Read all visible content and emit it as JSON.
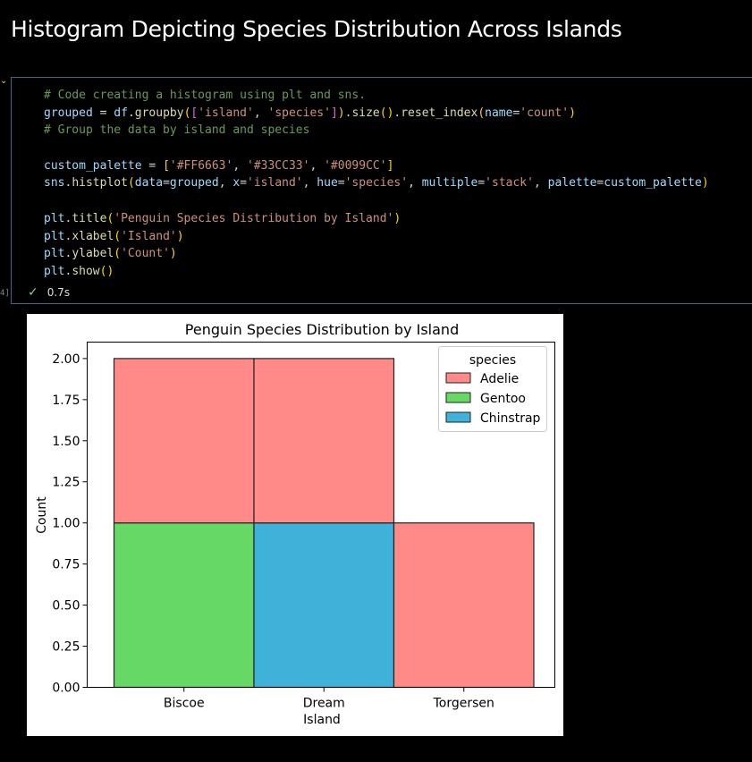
{
  "header": {
    "title": "Histogram Depicting Species Distribution Across Islands"
  },
  "cell": {
    "number": "4]",
    "status_time": "0.7s",
    "code_lines": [
      [
        {
          "t": "# Code creating a histogram using plt and sns.",
          "c": "c-comment"
        }
      ],
      [
        {
          "t": "grouped",
          "c": "c-var"
        },
        {
          "t": " = ",
          "c": "c-op"
        },
        {
          "t": "df",
          "c": "c-var"
        },
        {
          "t": ".",
          "c": "c-op"
        },
        {
          "t": "groupby",
          "c": "c-fn"
        },
        {
          "t": "(",
          "c": "c-br1"
        },
        {
          "t": "[",
          "c": "c-br2"
        },
        {
          "t": "'island'",
          "c": "c-str"
        },
        {
          "t": ", ",
          "c": "c-op"
        },
        {
          "t": "'species'",
          "c": "c-str"
        },
        {
          "t": "]",
          "c": "c-br2"
        },
        {
          "t": ")",
          "c": "c-br1"
        },
        {
          "t": ".",
          "c": "c-op"
        },
        {
          "t": "size",
          "c": "c-fn"
        },
        {
          "t": "()",
          "c": "c-br1"
        },
        {
          "t": ".",
          "c": "c-op"
        },
        {
          "t": "reset_index",
          "c": "c-fn"
        },
        {
          "t": "(",
          "c": "c-br1"
        },
        {
          "t": "name",
          "c": "c-var"
        },
        {
          "t": "=",
          "c": "c-op"
        },
        {
          "t": "'count'",
          "c": "c-str"
        },
        {
          "t": ")",
          "c": "c-br1"
        }
      ],
      [
        {
          "t": "# Group the data by island and species",
          "c": "c-comment"
        }
      ],
      [],
      [
        {
          "t": "custom_palette",
          "c": "c-var"
        },
        {
          "t": " = ",
          "c": "c-op"
        },
        {
          "t": "[",
          "c": "c-br1"
        },
        {
          "t": "'#FF6663'",
          "c": "c-str"
        },
        {
          "t": ", ",
          "c": "c-op"
        },
        {
          "t": "'#33CC33'",
          "c": "c-str"
        },
        {
          "t": ", ",
          "c": "c-op"
        },
        {
          "t": "'#0099CC'",
          "c": "c-str"
        },
        {
          "t": "]",
          "c": "c-br1"
        }
      ],
      [
        {
          "t": "sns",
          "c": "c-var"
        },
        {
          "t": ".",
          "c": "c-op"
        },
        {
          "t": "histplot",
          "c": "c-fn"
        },
        {
          "t": "(",
          "c": "c-br1"
        },
        {
          "t": "data",
          "c": "c-var"
        },
        {
          "t": "=",
          "c": "c-op"
        },
        {
          "t": "grouped",
          "c": "c-var"
        },
        {
          "t": ", ",
          "c": "c-op"
        },
        {
          "t": "x",
          "c": "c-var"
        },
        {
          "t": "=",
          "c": "c-op"
        },
        {
          "t": "'island'",
          "c": "c-str"
        },
        {
          "t": ", ",
          "c": "c-op"
        },
        {
          "t": "hue",
          "c": "c-var"
        },
        {
          "t": "=",
          "c": "c-op"
        },
        {
          "t": "'species'",
          "c": "c-str"
        },
        {
          "t": ", ",
          "c": "c-op"
        },
        {
          "t": "multiple",
          "c": "c-var"
        },
        {
          "t": "=",
          "c": "c-op"
        },
        {
          "t": "'stack'",
          "c": "c-str"
        },
        {
          "t": ", ",
          "c": "c-op"
        },
        {
          "t": "palette",
          "c": "c-var"
        },
        {
          "t": "=",
          "c": "c-op"
        },
        {
          "t": "custom_palette",
          "c": "c-var"
        },
        {
          "t": ")",
          "c": "c-br1"
        }
      ],
      [],
      [
        {
          "t": "plt",
          "c": "c-var"
        },
        {
          "t": ".",
          "c": "c-op"
        },
        {
          "t": "title",
          "c": "c-fn"
        },
        {
          "t": "(",
          "c": "c-br1"
        },
        {
          "t": "'Penguin Species Distribution by Island'",
          "c": "c-str"
        },
        {
          "t": ")",
          "c": "c-br1"
        }
      ],
      [
        {
          "t": "plt",
          "c": "c-var"
        },
        {
          "t": ".",
          "c": "c-op"
        },
        {
          "t": "xlabel",
          "c": "c-fn"
        },
        {
          "t": "(",
          "c": "c-br1"
        },
        {
          "t": "'Island'",
          "c": "c-str"
        },
        {
          "t": ")",
          "c": "c-br1"
        }
      ],
      [
        {
          "t": "plt",
          "c": "c-var"
        },
        {
          "t": ".",
          "c": "c-op"
        },
        {
          "t": "ylabel",
          "c": "c-fn"
        },
        {
          "t": "(",
          "c": "c-br1"
        },
        {
          "t": "'Count'",
          "c": "c-str"
        },
        {
          "t": ")",
          "c": "c-br1"
        }
      ],
      [
        {
          "t": "plt",
          "c": "c-var"
        },
        {
          "t": ".",
          "c": "c-op"
        },
        {
          "t": "show",
          "c": "c-fn"
        },
        {
          "t": "()",
          "c": "c-br1"
        }
      ]
    ]
  },
  "chart_data": {
    "type": "bar",
    "title": "Penguin Species Distribution by Island",
    "xlabel": "Island",
    "ylabel": "Count",
    "categories": [
      "Biscoe",
      "Dream",
      "Torgersen"
    ],
    "ylim": [
      0,
      2.1
    ],
    "yticks": [
      "0.00",
      "0.25",
      "0.50",
      "0.75",
      "1.00",
      "1.25",
      "1.50",
      "1.75",
      "2.00"
    ],
    "stacked": true,
    "legend": {
      "title": "species",
      "placement": "top-right"
    },
    "series": [
      {
        "name": "Adelie",
        "color": "#FF8A88",
        "values": [
          1,
          1,
          1
        ]
      },
      {
        "name": "Gentoo",
        "color": "#66D866",
        "values": [
          1,
          0,
          0
        ]
      },
      {
        "name": "Chinstrap",
        "color": "#40B1D9",
        "values": [
          0,
          1,
          0
        ]
      }
    ],
    "stack_order_bottom_to_top": [
      "Gentoo",
      "Chinstrap",
      "Adelie"
    ]
  }
}
